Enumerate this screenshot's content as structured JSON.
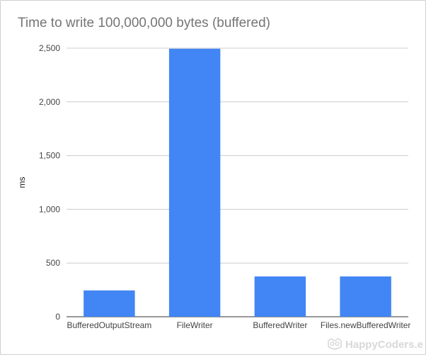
{
  "chart_data": {
    "type": "bar",
    "title": "Time to write 100,000,000 bytes (buffered)",
    "xlabel": "",
    "ylabel": "ms",
    "categories": [
      "BufferedOutputStream",
      "FileWriter",
      "BufferedWriter",
      "Files.newBufferedWriter"
    ],
    "values": [
      245,
      2495,
      375,
      375
    ],
    "ylim": [
      0,
      2500
    ],
    "yticks": [
      0,
      500,
      1000,
      1500,
      2000,
      2500
    ],
    "ytick_labels": [
      "0",
      "500",
      "1,000",
      "1,500",
      "2,000",
      "2,500"
    ],
    "grid": true,
    "legend": "none",
    "bar_color": "#4285f4",
    "grid_color": "#cccccc"
  },
  "watermark": {
    "text": "HappyCoders.e",
    "icon": "owl-logo-icon"
  }
}
